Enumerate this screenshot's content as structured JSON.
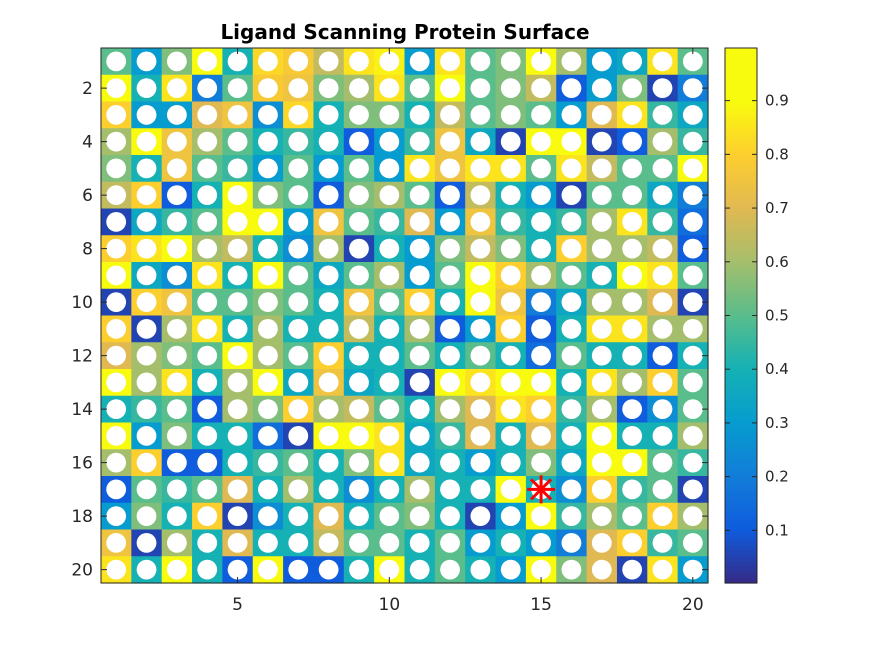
{
  "chart_data": {
    "type": "heatmap",
    "title": "Ligand Scanning Protein Surface",
    "xlabel": "",
    "ylabel": "",
    "rows": 20,
    "cols": 20,
    "xlim": [
      0.5,
      20.5
    ],
    "ylim": [
      0.5,
      20.5
    ],
    "x_ticks": [
      5,
      10,
      15,
      20
    ],
    "x_tick_labels": [
      "5",
      "10",
      "15",
      "20"
    ],
    "y_ticks": [
      2,
      4,
      6,
      8,
      10,
      12,
      14,
      16,
      18,
      20
    ],
    "y_tick_labels": [
      "2",
      "4",
      "6",
      "8",
      "10",
      "12",
      "14",
      "16",
      "18",
      "20"
    ],
    "colormap": "parula",
    "clim": [
      0,
      1
    ],
    "colorbar_ticks": [
      0.1,
      0.2,
      0.3,
      0.4,
      0.5,
      0.6,
      0.7,
      0.8,
      0.9
    ],
    "colorbar_tick_labels": [
      "0.1",
      "0.2",
      "0.3",
      "0.4",
      "0.5",
      "0.6",
      "0.7",
      "0.8",
      "0.9"
    ],
    "marker": {
      "x": 15,
      "y": 17,
      "style": "red-star",
      "color": "#ff0000"
    },
    "grid_markers": "white-circle",
    "values": [
      [
        0.5,
        0.3,
        0.55,
        0.92,
        0.4,
        0.82,
        0.78,
        0.65,
        0.85,
        0.88,
        0.3,
        0.85,
        0.5,
        0.55,
        0.95,
        0.6,
        0.3,
        0.35,
        0.85,
        0.5
      ],
      [
        0.9,
        0.4,
        0.85,
        0.2,
        0.5,
        0.78,
        0.75,
        0.55,
        0.6,
        0.85,
        0.5,
        0.9,
        0.5,
        0.55,
        0.65,
        0.1,
        0.3,
        0.55,
        0.05,
        0.2
      ],
      [
        0.8,
        0.3,
        0.3,
        0.7,
        0.75,
        0.25,
        0.82,
        0.4,
        0.55,
        0.55,
        0.4,
        0.65,
        0.5,
        0.55,
        0.5,
        0.3,
        0.7,
        0.85,
        0.45,
        0.35
      ],
      [
        0.6,
        0.92,
        0.75,
        0.6,
        0.5,
        0.4,
        0.45,
        0.4,
        0.1,
        0.3,
        0.45,
        0.75,
        0.35,
        0.05,
        0.95,
        0.9,
        0.05,
        0.1,
        0.6,
        0.45
      ],
      [
        0.55,
        0.4,
        0.75,
        0.5,
        0.45,
        0.3,
        0.5,
        0.3,
        0.5,
        0.3,
        0.85,
        0.75,
        0.85,
        0.85,
        0.5,
        0.85,
        0.65,
        0.5,
        0.5,
        0.95
      ],
      [
        0.65,
        0.8,
        0.1,
        0.4,
        0.92,
        0.55,
        0.5,
        0.1,
        0.55,
        0.6,
        0.5,
        0.1,
        0.65,
        0.4,
        0.3,
        0.05,
        0.5,
        0.5,
        0.35,
        0.2
      ],
      [
        0.05,
        0.35,
        0.45,
        0.5,
        0.95,
        0.95,
        0.3,
        0.75,
        0.5,
        0.45,
        0.7,
        0.3,
        0.75,
        0.45,
        0.4,
        0.45,
        0.6,
        0.85,
        0.45,
        0.15
      ],
      [
        0.8,
        0.85,
        0.95,
        0.6,
        0.65,
        0.4,
        0.25,
        0.6,
        0.05,
        0.4,
        0.3,
        0.55,
        0.65,
        0.55,
        0.4,
        0.8,
        0.6,
        0.6,
        0.65,
        0.1
      ],
      [
        0.9,
        0.35,
        0.25,
        0.85,
        0.4,
        0.92,
        0.5,
        0.35,
        0.5,
        0.6,
        0.3,
        0.5,
        0.92,
        0.8,
        0.6,
        0.5,
        0.4,
        0.92,
        0.85,
        0.5
      ],
      [
        0.05,
        0.8,
        0.75,
        0.5,
        0.5,
        0.55,
        0.5,
        0.4,
        0.75,
        0.5,
        0.8,
        0.4,
        0.95,
        0.75,
        0.2,
        0.35,
        0.6,
        0.6,
        0.7,
        0.05
      ],
      [
        0.8,
        0.05,
        0.6,
        0.85,
        0.4,
        0.6,
        0.4,
        0.4,
        0.65,
        0.4,
        0.6,
        0.1,
        0.3,
        0.8,
        0.1,
        0.4,
        0.85,
        0.85,
        0.6,
        0.6
      ],
      [
        0.7,
        0.6,
        0.55,
        0.5,
        0.95,
        0.6,
        0.5,
        0.8,
        0.4,
        0.4,
        0.5,
        0.4,
        0.5,
        0.4,
        0.15,
        0.5,
        0.4,
        0.4,
        0.1,
        0.4
      ],
      [
        0.95,
        0.6,
        0.85,
        0.4,
        0.6,
        0.95,
        0.35,
        0.75,
        0.35,
        0.4,
        0.05,
        0.9,
        0.85,
        0.95,
        0.95,
        0.4,
        0.85,
        0.6,
        0.8,
        0.5
      ],
      [
        0.4,
        0.45,
        0.5,
        0.1,
        0.6,
        0.55,
        0.8,
        0.6,
        0.65,
        0.5,
        0.4,
        0.6,
        0.7,
        0.85,
        0.8,
        0.45,
        0.6,
        0.1,
        0.25,
        0.5
      ],
      [
        0.95,
        0.3,
        0.55,
        0.4,
        0.4,
        0.15,
        0.05,
        0.95,
        0.95,
        0.85,
        0.35,
        0.45,
        0.7,
        0.4,
        0.7,
        0.4,
        0.9,
        0.4,
        0.4,
        0.6
      ],
      [
        0.6,
        0.8,
        0.1,
        0.1,
        0.4,
        0.45,
        0.5,
        0.4,
        0.55,
        0.85,
        0.35,
        0.4,
        0.3,
        0.4,
        0.55,
        0.35,
        0.9,
        0.9,
        0.5,
        0.45
      ],
      [
        0.1,
        0.5,
        0.45,
        0.5,
        0.7,
        0.4,
        0.6,
        0.4,
        0.25,
        0.4,
        0.6,
        0.4,
        0.4,
        0.9,
        0.4,
        0.25,
        0.8,
        0.45,
        0.5,
        0.05
      ],
      [
        0.3,
        0.55,
        0.4,
        0.8,
        0.05,
        0.25,
        0.4,
        0.7,
        0.4,
        0.5,
        0.55,
        0.4,
        0.05,
        0.3,
        0.95,
        0.45,
        0.6,
        0.5,
        0.8,
        0.6
      ],
      [
        0.75,
        0.05,
        0.6,
        0.4,
        0.7,
        0.4,
        0.4,
        0.65,
        0.5,
        0.5,
        0.4,
        0.5,
        0.3,
        0.4,
        0.3,
        0.2,
        0.7,
        0.8,
        0.45,
        0.5
      ],
      [
        0.85,
        0.4,
        0.9,
        0.4,
        0.1,
        0.9,
        0.1,
        0.1,
        0.4,
        0.95,
        0.4,
        0.5,
        0.4,
        0.3,
        0.9,
        0.55,
        0.7,
        0.05,
        0.85,
        0.3
      ]
    ]
  }
}
